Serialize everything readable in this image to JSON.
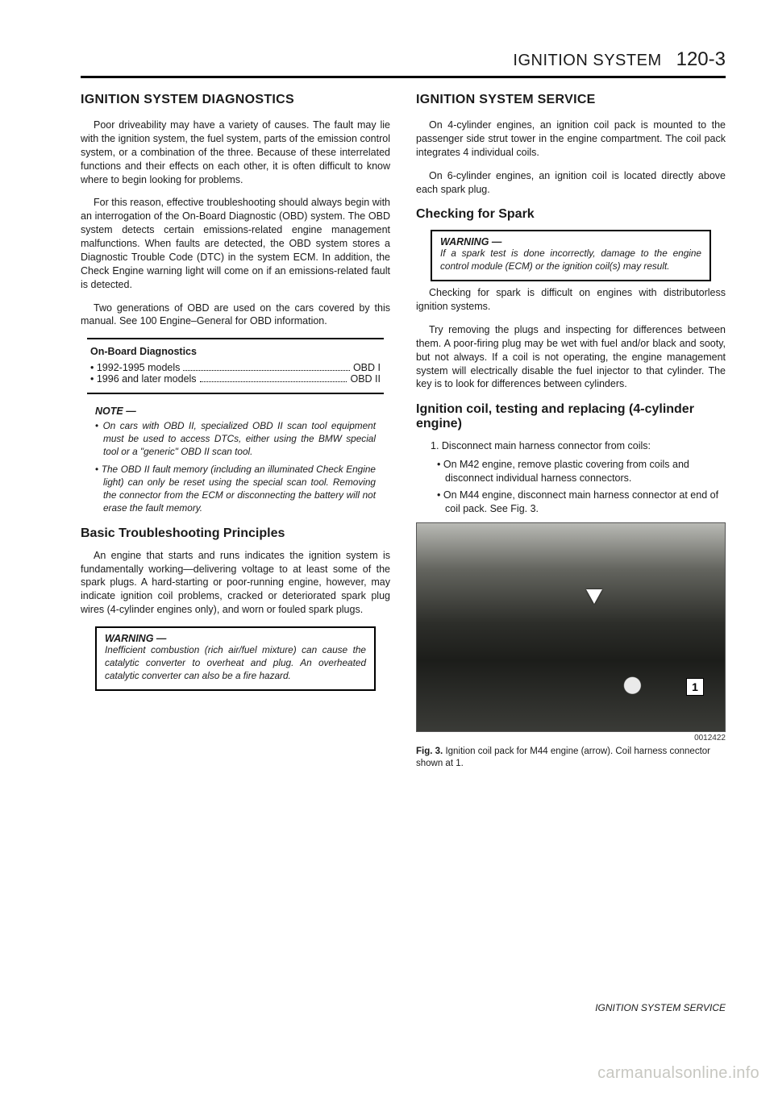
{
  "header": {
    "title": "IGNITION SYSTEM",
    "page": "120-3"
  },
  "left": {
    "h_diag": "IGNITION SYSTEM DIAGNOSTICS",
    "p1": "Poor driveability may have a variety of causes. The fault may lie with the ignition system, the fuel system, parts of the emission control system, or a combination of the three. Because of these interrelated functions and their effects on each other, it is often difficult to know where to begin looking for problems.",
    "p2": "For this reason, effective troubleshooting should always begin with an interrogation of the On-Board Diagnostic (OBD) system. The OBD system detects certain emissions-related engine management malfunctions. When faults are detected, the OBD system stores a Diagnostic Trouble Code (DTC) in the system ECM. In addition, the Check Engine warning light will come on if an emissions-related fault is detected.",
    "p3": "Two generations of OBD are used on the cars covered by this manual. See 100 Engine–General for OBD information.",
    "obd": {
      "title": "On-Board Diagnostics",
      "row1_label": "1992-1995 models",
      "row1_val": "OBD I",
      "row2_label": "1996 and later models",
      "row2_val": "OBD II"
    },
    "note": {
      "head": "NOTE —",
      "i1": "On cars with OBD II, specialized OBD II scan tool equipment must be used to access DTCs, either using the BMW special tool or a \"generic\" OBD II scan tool.",
      "i2": "The OBD II fault memory (including an illuminated Check Engine light) can only be reset using the special scan tool. Removing the connector from the ECM or disconnecting the battery will not erase the fault memory."
    },
    "h_basic": "Basic Troubleshooting Principles",
    "p4": "An engine that starts and runs indicates the ignition system is fundamentally working—delivering voltage to at least some of the spark plugs. A hard-starting or poor-running engine, however, may indicate ignition coil problems, cracked or deteriorated spark plug wires (4-cylinder engines only), and worn or fouled spark plugs.",
    "warn": {
      "head": "WARNING —",
      "text": "Inefficient combustion (rich air/fuel mixture) can cause the catalytic converter to overheat and plug. An overheated catalytic converter can also be a fire hazard."
    }
  },
  "right": {
    "h_service": "IGNITION SYSTEM SERVICE",
    "p1": "On 4-cylinder engines, an ignition coil pack is mounted to the passenger side strut tower in the engine compartment. The coil pack integrates 4 individual coils.",
    "p2": "On 6-cylinder engines, an ignition coil is located directly above each spark plug.",
    "h_check": "Checking for Spark",
    "warn": {
      "head": "WARNING —",
      "text": "If a spark test is done incorrectly, damage to the engine control module (ECM) or the ignition coil(s) may result."
    },
    "p3": "Checking for spark is difficult on engines with distributorless ignition systems.",
    "p4": "Try removing the plugs and inspecting for differences between them. A poor-firing plug may be wet with fuel and/or black and sooty, but not always. If a coil is not operating, the engine management system will electrically disable the fuel injector to that cylinder. The key is to look for differences between cylinders.",
    "h_coil": "Ignition coil, testing and replacing (4-cylinder engine)",
    "proc1": "1. Disconnect main harness connector from coils:",
    "proc1a": "On M42 engine, remove plastic covering from coils and disconnect individual harness connectors.",
    "proc1b": "On M44 engine, disconnect main harness connector at end of coil pack. See Fig. 3.",
    "fig": {
      "label1": "1",
      "code": "0012422",
      "cap_lead": "Fig. 3.",
      "cap_text": "Ignition coil pack for M44 engine (arrow). Coil harness connector shown at 1."
    }
  },
  "footer": "IGNITION SYSTEM SERVICE",
  "watermark": "carmanualsonline.info"
}
